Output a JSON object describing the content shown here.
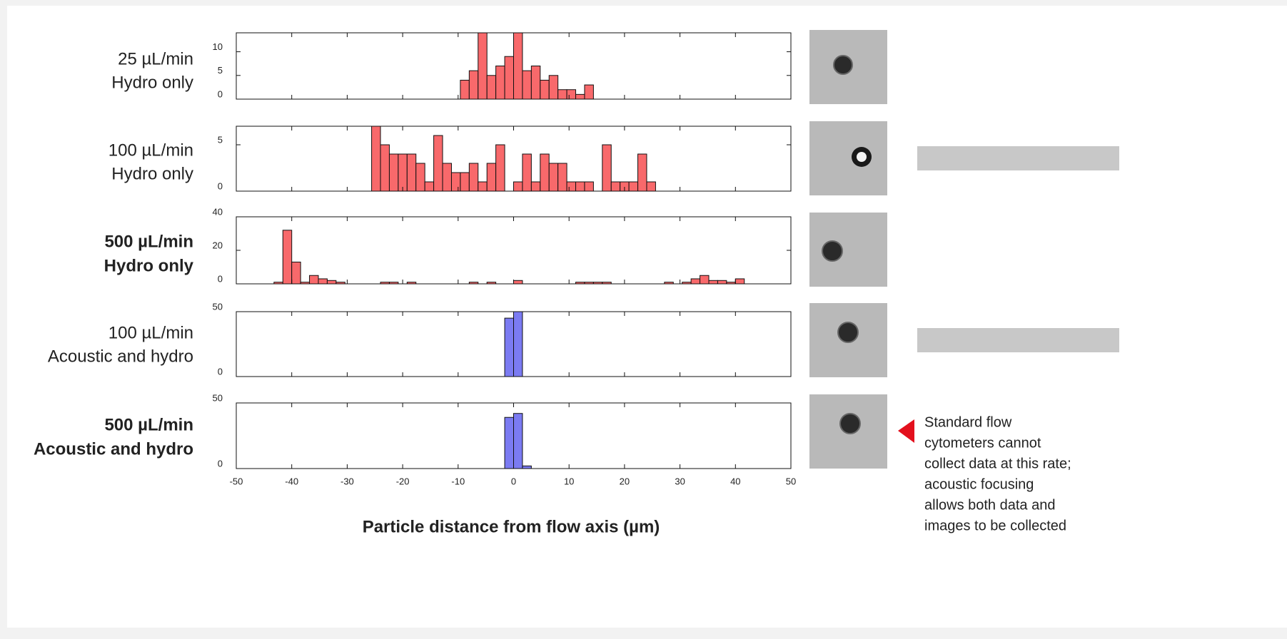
{
  "chart_data": [
    {
      "type": "histogram",
      "title": "25 µL/min",
      "subtitle": "Hydro only",
      "bold": false,
      "color": "#f8696b",
      "bins": [
        -9.6,
        -8,
        -6.4,
        -4.8,
        -3.2,
        -1.6,
        0,
        1.6,
        3.2,
        4.8,
        6.4,
        8,
        9.6,
        11.2,
        12.8,
        14.4
      ],
      "values": [
        4,
        6,
        14,
        5,
        7,
        9,
        14,
        6,
        7,
        4,
        5,
        2,
        2,
        1,
        3
      ],
      "xlim": [
        -50,
        50
      ],
      "xticks": [
        -50,
        -40,
        -30,
        -20,
        -10,
        0,
        10,
        20,
        30,
        40,
        50
      ],
      "ylim": [
        0,
        14
      ],
      "yticks": [
        0,
        5,
        10
      ]
    },
    {
      "type": "histogram",
      "title": "100 µL/min",
      "subtitle": "Hydro only",
      "bold": false,
      "color": "#f8696b",
      "bins": [
        -25.6,
        -24,
        -22.4,
        -20.8,
        -19.2,
        -17.6,
        -16,
        -14.4,
        -12.8,
        -11.2,
        -9.6,
        -8,
        -6.4,
        -4.8,
        -3.2,
        -1.6,
        0,
        1.6,
        3.2,
        4.8,
        6.4,
        8,
        9.6,
        11.2,
        12.8,
        14.4,
        16,
        17.6,
        19.2,
        20.8,
        22.4,
        24,
        25.6
      ],
      "values": [
        7,
        5,
        4,
        4,
        4,
        3,
        1,
        6,
        3,
        2,
        2,
        3,
        1,
        3,
        5,
        0,
        1,
        4,
        1,
        4,
        3,
        3,
        1,
        1,
        1,
        0,
        5,
        1,
        1,
        1,
        4,
        1
      ],
      "xlim": [
        -50,
        50
      ],
      "xticks": [
        -50,
        -40,
        -30,
        -20,
        -10,
        0,
        10,
        20,
        30,
        40,
        50
      ],
      "ylim": [
        0,
        7
      ],
      "yticks": [
        0,
        5
      ]
    },
    {
      "type": "histogram",
      "title": "500 µL/min",
      "subtitle": "Hydro only",
      "bold": true,
      "color": "#f8696b",
      "bins": [
        -43.2,
        -41.6,
        -40,
        -38.4,
        -36.8,
        -35.2,
        -33.6,
        -32,
        -30.4,
        -28.8,
        -27.2,
        -25.6,
        -24,
        -22.4,
        -20.8,
        -19.2,
        -17.6,
        -16,
        -14.4,
        -12.8,
        -11.2,
        -9.6,
        -8,
        -6.4,
        -4.8,
        -3.2,
        -1.6,
        0,
        1.6,
        3.2,
        4.8,
        6.4,
        8,
        9.6,
        11.2,
        12.8,
        14.4,
        16,
        17.6,
        19.2,
        20.8,
        22.4,
        24,
        25.6,
        27.2,
        28.8,
        30.4,
        32,
        33.6,
        35.2,
        36.8,
        38.4,
        40,
        41.6
      ],
      "values": [
        1,
        32,
        13,
        1,
        5,
        3,
        2,
        1,
        0,
        0,
        0,
        0,
        1,
        1,
        0,
        1,
        0,
        0,
        0,
        0,
        0,
        0,
        1,
        0,
        1,
        0,
        0,
        2,
        0,
        0,
        0,
        0,
        0,
        0,
        1,
        1,
        1,
        1,
        0,
        0,
        0,
        0,
        0,
        0,
        1,
        0,
        1,
        3,
        5,
        2,
        2,
        1,
        3
      ],
      "xlim": [
        -50,
        50
      ],
      "xticks": [
        -50,
        -40,
        -30,
        -20,
        -10,
        0,
        10,
        20,
        30,
        40,
        50
      ],
      "ylim": [
        0,
        40
      ],
      "yticks": [
        0,
        20,
        40
      ]
    },
    {
      "type": "histogram",
      "title": "100 µL/min",
      "subtitle": "Acoustic and hydro",
      "bold": false,
      "color": "#7b7bf2",
      "bins": [
        -1.6,
        0,
        1.6
      ],
      "values": [
        45,
        50
      ],
      "xlim": [
        -50,
        50
      ],
      "xticks": [
        -50,
        -40,
        -30,
        -20,
        -10,
        0,
        10,
        20,
        30,
        40,
        50
      ],
      "ylim": [
        0,
        50
      ],
      "yticks": [
        0,
        50
      ]
    },
    {
      "type": "histogram",
      "title": "500 µL/min",
      "subtitle": "Acoustic and hydro",
      "bold": true,
      "color": "#7b7bf2",
      "bins": [
        -1.6,
        0,
        1.6,
        3.2
      ],
      "values": [
        39,
        42,
        2
      ],
      "xlim": [
        -50,
        50
      ],
      "xticks": [
        -50,
        -40,
        -30,
        -20,
        -10,
        0,
        10,
        20,
        30,
        40,
        50
      ],
      "ylim": [
        0,
        50
      ],
      "yticks": [
        0,
        50
      ],
      "xlabel": "Particle distance from flow axis (µm)",
      "annotation": [
        "Standard flow",
        "cytometers cannot",
        "collect data at this rate;",
        "acoustic focusing",
        "allows both data and",
        "images to be collected"
      ]
    }
  ]
}
